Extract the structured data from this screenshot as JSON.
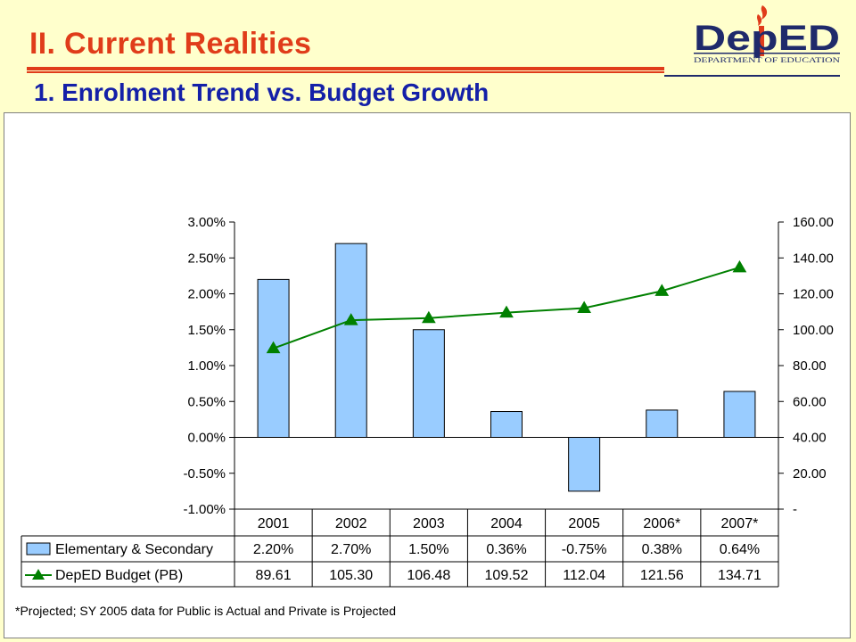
{
  "slide": {
    "title": "II. Current Realities",
    "subtitle": "1. Enrolment Trend vs. Budget Growth",
    "footnote": "*Projected; SY 2005 data for Public is Actual and Private is Projected",
    "logo": {
      "wordmark": "DepED",
      "tagline": "DEPARTMENT OF EDUCATION"
    }
  },
  "colors": {
    "title": "#E03C1A",
    "subtitle": "#1420A8",
    "bar_fill": "#99CCFF",
    "line": "#008000",
    "logo_blue": "#1F2A6B",
    "logo_red": "#E03C1A"
  },
  "chart_data": {
    "type": "bar",
    "categories": [
      "2001",
      "2002",
      "2003",
      "2004",
      "2005",
      "2006*",
      "2007*"
    ],
    "series": [
      {
        "name": "Elementary & Secondary",
        "type": "bar",
        "axis": "left",
        "values": [
          2.2,
          2.7,
          1.5,
          0.36,
          -0.75,
          0.38,
          0.64
        ],
        "labels": [
          "2.20%",
          "2.70%",
          "1.50%",
          "0.36%",
          "-0.75%",
          "0.38%",
          "0.64%"
        ]
      },
      {
        "name": "DepED Budget (PB)",
        "type": "line",
        "marker": "triangle",
        "axis": "right",
        "values": [
          89.61,
          105.3,
          106.48,
          109.52,
          112.04,
          121.56,
          134.71
        ],
        "labels": [
          "89.61",
          "105.30",
          "106.48",
          "109.52",
          "112.04",
          "121.56",
          "134.71"
        ]
      }
    ],
    "y_left": {
      "min": -1.0,
      "max": 3.0,
      "step": 0.5,
      "ticks": [
        "3.00%",
        "2.50%",
        "2.00%",
        "1.50%",
        "1.00%",
        "0.50%",
        "0.00%",
        "-0.50%",
        "-1.00%"
      ]
    },
    "y_right": {
      "min": 0,
      "max": 160,
      "step": 20,
      "ticks": [
        "160.00",
        "140.00",
        "120.00",
        "100.00",
        "80.00",
        "60.00",
        "40.00",
        "20.00",
        "-"
      ]
    },
    "grid": false,
    "legend": "data-table-left",
    "data_table": true
  }
}
